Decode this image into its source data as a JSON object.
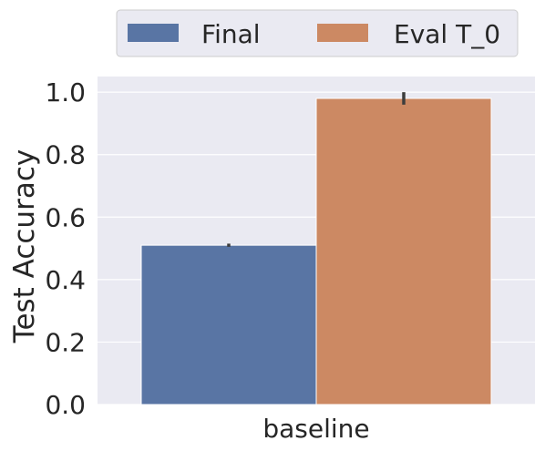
{
  "chart_data": {
    "type": "bar",
    "categories": [
      "baseline"
    ],
    "series": [
      {
        "name": "Final",
        "values": [
          0.51
        ],
        "error": [
          0.005
        ],
        "color": "#5975a4"
      },
      {
        "name": "Eval T_0",
        "values": [
          0.98
        ],
        "error": [
          0.02
        ],
        "color": "#cc8963"
      }
    ],
    "xlabel": "",
    "ylabel": "Test Accuracy",
    "ylim": [
      0.0,
      1.05
    ],
    "yticks": [
      0.0,
      0.2,
      0.4,
      0.6,
      0.8,
      1.0
    ],
    "ytick_labels": [
      "0.0",
      "0.2",
      "0.4",
      "0.6",
      "0.8",
      "1.0"
    ],
    "grid": true,
    "legend_position": "top-center",
    "background_color": "#eaeaf2",
    "grid_color": "#ffffff"
  }
}
